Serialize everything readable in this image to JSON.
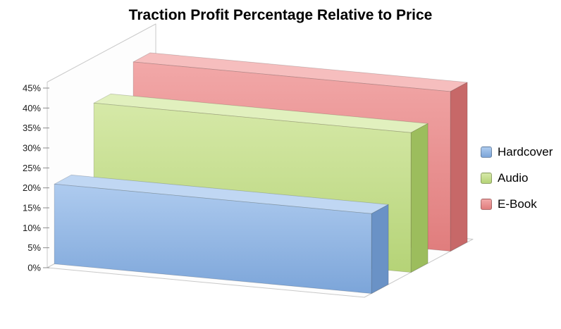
{
  "chart_data": {
    "type": "bar",
    "style": "3d-depth-rows",
    "title": "Traction Profit Percentage Relative to Price",
    "categories": [
      "Hardcover",
      "Audio",
      "E-Book"
    ],
    "series": [
      {
        "name": "Hardcover",
        "value": 20,
        "color": "#8DB4E3",
        "shades": {
          "front_light": "#AECBEF",
          "front_dark": "#7CA5D9",
          "top": "#C0D7F3",
          "side": "#6A92C6"
        }
      },
      {
        "name": "Audio",
        "value": 35,
        "color": "#C3D69B",
        "shades": {
          "front_light": "#D6E9A8",
          "front_dark": "#B5D377",
          "top": "#E1F0BE",
          "side": "#9CBD5D"
        }
      },
      {
        "name": "E-Book",
        "value": 40,
        "color": "#E78F8F",
        "shades": {
          "front_light": "#F2A8A8",
          "front_dark": "#E07D7D",
          "top": "#F6BEBE",
          "side": "#C76868"
        }
      }
    ],
    "value_unit": "%",
    "ylim": [
      0,
      45
    ],
    "ytick_step": 5,
    "yticks": [
      "0%",
      "5%",
      "10%",
      "15%",
      "20%",
      "25%",
      "30%",
      "35%",
      "40%",
      "45%"
    ],
    "grid": false,
    "legend_position": "right"
  }
}
